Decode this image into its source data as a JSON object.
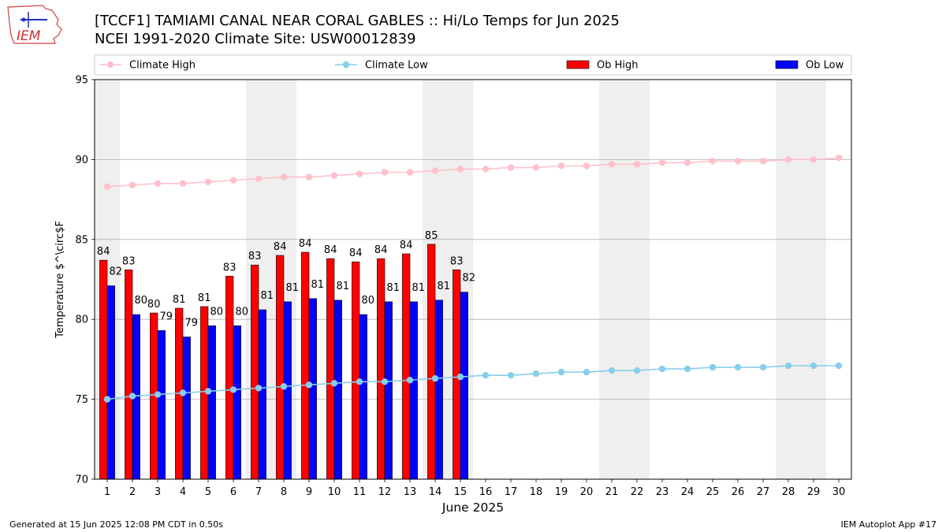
{
  "header": {
    "title_line1": "[TCCF1] TAMIAMI CANAL NEAR CORAL GABLES :: Hi/Lo Temps for Jun 2025",
    "title_line2": "NCEI 1991-2020 Climate Site: USW00012839"
  },
  "logo": {
    "text": "IEM",
    "color": "#d03030"
  },
  "footer": {
    "left": "Generated at 15 Jun 2025 12:08 PM CDT in 0.50s",
    "right": "IEM Autoplot App #17"
  },
  "chart_data": {
    "type": "bar",
    "xlabel": "June 2025",
    "ylabel": "Temperature $^\\circ$F",
    "ylim": [
      70,
      95
    ],
    "xlim": [
      0.5,
      30.5
    ],
    "yticks": [
      70,
      75,
      80,
      85,
      90,
      95
    ],
    "days": [
      1,
      2,
      3,
      4,
      5,
      6,
      7,
      8,
      9,
      10,
      11,
      12,
      13,
      14,
      15,
      16,
      17,
      18,
      19,
      20,
      21,
      22,
      23,
      24,
      25,
      26,
      27,
      28,
      29,
      30
    ],
    "weekend_days": [
      1,
      7,
      8,
      14,
      15,
      21,
      22,
      28,
      29
    ],
    "grid": "horizontal",
    "legend": "top, above plot",
    "legend_entries": [
      "Climate High",
      "Climate Low",
      "Ob High",
      "Ob Low"
    ],
    "colors": {
      "climate_high": "#ffc0cb",
      "climate_low": "#87ceeb",
      "ob_high": "#ff0000",
      "ob_low": "#0000ff",
      "weekend": "#efefef",
      "grid": "#b0b0b0"
    },
    "series": [
      {
        "name": "Ob High",
        "kind": "bar",
        "values": [
          83.7,
          83.1,
          80.4,
          80.7,
          80.8,
          82.7,
          83.4,
          84.0,
          84.2,
          83.8,
          83.6,
          83.8,
          84.1,
          84.7,
          83.1
        ],
        "labels": [
          "84",
          "83",
          "80",
          "81",
          "81",
          "83",
          "83",
          "84",
          "84",
          "84",
          "84",
          "84",
          "84",
          "85",
          "83"
        ]
      },
      {
        "name": "Ob Low",
        "kind": "bar",
        "values": [
          82.1,
          80.3,
          79.3,
          78.9,
          79.6,
          79.6,
          80.6,
          81.1,
          81.3,
          81.2,
          80.3,
          81.1,
          81.1,
          81.2,
          81.7
        ],
        "labels": [
          "82",
          "80",
          "79",
          "79",
          "80",
          "80",
          "81",
          "81",
          "81",
          "81",
          "80",
          "81",
          "81",
          "81",
          "82"
        ]
      },
      {
        "name": "Climate High",
        "kind": "line",
        "values": [
          88.3,
          88.4,
          88.5,
          88.5,
          88.6,
          88.7,
          88.8,
          88.9,
          88.9,
          89.0,
          89.1,
          89.2,
          89.2,
          89.3,
          89.4,
          89.4,
          89.5,
          89.5,
          89.6,
          89.6,
          89.7,
          89.7,
          89.8,
          89.8,
          89.9,
          89.9,
          89.9,
          90.0,
          90.0,
          90.1
        ]
      },
      {
        "name": "Climate Low",
        "kind": "line",
        "values": [
          75.0,
          75.2,
          75.3,
          75.4,
          75.5,
          75.6,
          75.7,
          75.8,
          75.9,
          76.0,
          76.1,
          76.1,
          76.2,
          76.3,
          76.4,
          76.5,
          76.5,
          76.6,
          76.7,
          76.7,
          76.8,
          76.8,
          76.9,
          76.9,
          77.0,
          77.0,
          77.0,
          77.1,
          77.1,
          77.1
        ]
      }
    ]
  }
}
